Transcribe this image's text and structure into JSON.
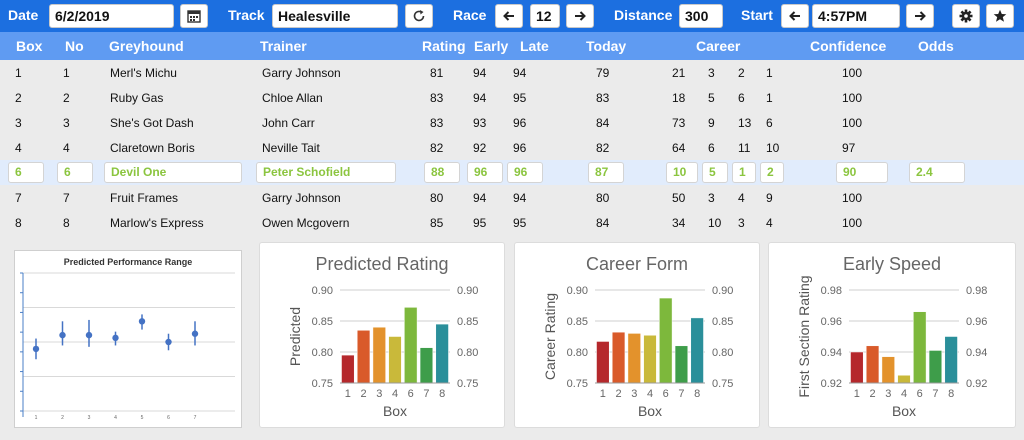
{
  "toolbar": {
    "date_label": "Date",
    "date_value": "6/2/2019",
    "track_label": "Track",
    "track_value": "Healesville",
    "race_label": "Race",
    "race_value": "12",
    "distance_label": "Distance",
    "distance_value": "300",
    "start_label": "Start",
    "start_value": "4:57PM",
    "icons": [
      "calendar-icon",
      "refresh-icon",
      "arrow-left-icon",
      "arrow-right-icon",
      "gear-icon",
      "star-icon"
    ]
  },
  "table": {
    "headers": {
      "box": "Box",
      "no": "No",
      "greyhound": "Greyhound",
      "trainer": "Trainer",
      "rating": "Rating",
      "early": "Early",
      "late": "Late",
      "today": "Today",
      "career": "Career",
      "confidence": "Confidence",
      "odds": "Odds"
    },
    "rows": [
      {
        "box": "1",
        "no": "1",
        "name": "Merl's Michu",
        "trainer": "Garry Johnson",
        "rating": "81",
        "early": "94",
        "late": "94",
        "today": "79",
        "c1": "21",
        "c2": "3",
        "c3": "2",
        "c4": "1",
        "confidence": "100",
        "odds": ""
      },
      {
        "box": "2",
        "no": "2",
        "name": "Ruby Gas",
        "trainer": "Chloe Allan",
        "rating": "83",
        "early": "94",
        "late": "95",
        "today": "83",
        "c1": "18",
        "c2": "5",
        "c3": "6",
        "c4": "1",
        "confidence": "100",
        "odds": ""
      },
      {
        "box": "3",
        "no": "3",
        "name": "She's Got Dash",
        "trainer": "John Carr",
        "rating": "83",
        "early": "93",
        "late": "96",
        "today": "84",
        "c1": "73",
        "c2": "9",
        "c3": "13",
        "c4": "6",
        "confidence": "100",
        "odds": ""
      },
      {
        "box": "4",
        "no": "4",
        "name": "Claretown Boris",
        "trainer": "Neville Tait",
        "rating": "82",
        "early": "92",
        "late": "96",
        "today": "82",
        "c1": "64",
        "c2": "6",
        "c3": "11",
        "c4": "10",
        "confidence": "97",
        "odds": ""
      },
      {
        "box": "6",
        "no": "6",
        "name": "Devil One",
        "trainer": "Peter Schofield",
        "rating": "88",
        "early": "96",
        "late": "96",
        "today": "87",
        "c1": "10",
        "c2": "5",
        "c3": "1",
        "c4": "2",
        "confidence": "90",
        "odds": "2.4",
        "selected": true
      },
      {
        "box": "7",
        "no": "7",
        "name": "Fruit Frames",
        "trainer": "Garry Johnson",
        "rating": "80",
        "early": "94",
        "late": "94",
        "today": "80",
        "c1": "50",
        "c2": "3",
        "c3": "4",
        "c4": "9",
        "confidence": "100",
        "odds": ""
      },
      {
        "box": "8",
        "no": "8",
        "name": "Marlow's Express",
        "trainer": "Owen Mcgovern",
        "rating": "85",
        "early": "95",
        "late": "95",
        "today": "84",
        "c1": "34",
        "c2": "10",
        "c3": "3",
        "c4": "4",
        "confidence": "100",
        "odds": ""
      }
    ]
  },
  "chart_data": [
    {
      "type": "scatter",
      "title": "Predicted Performance Range",
      "x": [
        1,
        2,
        3,
        4,
        5,
        6,
        7
      ],
      "y": [
        0.79,
        0.81,
        0.81,
        0.806,
        0.83,
        0.8,
        0.812
      ],
      "error_low": [
        0.775,
        0.795,
        0.793,
        0.795,
        0.818,
        0.788,
        0.795
      ],
      "error_high": [
        0.805,
        0.83,
        0.832,
        0.815,
        0.84,
        0.812,
        0.83
      ],
      "xlabels": [
        "1",
        "2",
        "3",
        "4",
        "5",
        "6",
        "7"
      ],
      "ylim": [
        0.7,
        0.9
      ]
    },
    {
      "type": "bar",
      "title": "Predicted Rating",
      "categories": [
        "1",
        "2",
        "3",
        "4",
        "6",
        "7",
        "8"
      ],
      "values": [
        0.795,
        0.835,
        0.84,
        0.825,
        0.872,
        0.807,
        0.845
      ],
      "ylim": [
        0.75,
        0.9
      ],
      "yticks": [
        "0.75",
        "0.80",
        "0.85",
        "0.90"
      ],
      "xlabel": "Box",
      "ylabel": "Predicted",
      "colors": [
        "#b5282c",
        "#d95a2a",
        "#e3922c",
        "#c9b93a",
        "#7db83c",
        "#3e9d4a",
        "#2a8f9a"
      ]
    },
    {
      "type": "bar",
      "title": "Career Form",
      "categories": [
        "1",
        "2",
        "3",
        "4",
        "6",
        "7",
        "8"
      ],
      "values": [
        0.817,
        0.832,
        0.83,
        0.827,
        0.887,
        0.81,
        0.855
      ],
      "ylim": [
        0.75,
        0.9
      ],
      "yticks": [
        "0.75",
        "0.80",
        "0.85",
        "0.90"
      ],
      "xlabel": "Box",
      "ylabel": "Career Rating",
      "colors": [
        "#b5282c",
        "#d95a2a",
        "#e3922c",
        "#c9b93a",
        "#7db83c",
        "#3e9d4a",
        "#2a8f9a"
      ]
    },
    {
      "type": "bar",
      "title": "Early Speed",
      "categories": [
        "1",
        "2",
        "3",
        "4",
        "6",
        "7",
        "8"
      ],
      "values": [
        0.94,
        0.944,
        0.937,
        0.925,
        0.966,
        0.941,
        0.95
      ],
      "ylim": [
        0.92,
        0.98
      ],
      "yticks": [
        "0.92",
        "0.94",
        "0.96",
        "0.98"
      ],
      "xlabel": "Box",
      "ylabel": "First Section Rating",
      "colors": [
        "#b5282c",
        "#d95a2a",
        "#e3922c",
        "#c9b93a",
        "#7db83c",
        "#3e9d4a",
        "#2a8f9a"
      ]
    }
  ]
}
